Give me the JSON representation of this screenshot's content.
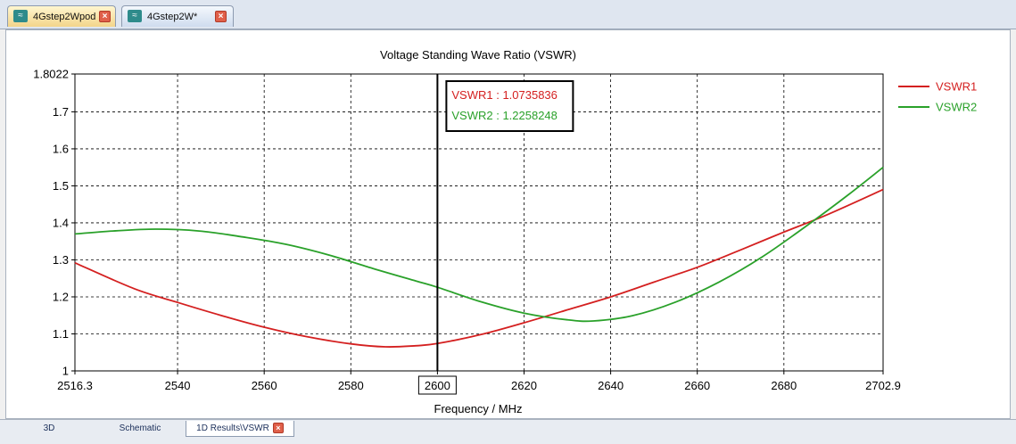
{
  "tabs": [
    {
      "label": "4Gstep2Wpod",
      "active": true
    },
    {
      "label": "4Gstep2W*",
      "active": false
    }
  ],
  "bottom_tabs": [
    {
      "label": "3D"
    },
    {
      "label": "Schematic"
    },
    {
      "label": "1D Results\\VSWR"
    }
  ],
  "icons": {
    "tab": "waveguide-icon",
    "close": "close-icon"
  },
  "colors": {
    "vswr1": "#d42020",
    "vswr2": "#2aa12a"
  },
  "chart_data": {
    "type": "line",
    "title": "Voltage Standing Wave Ratio (VSWR)",
    "xlabel": "Frequency / MHz",
    "ylabel": "",
    "xlim": [
      2516.3,
      2702.9
    ],
    "ylim": [
      1,
      1.8022
    ],
    "x_ticks": [
      {
        "value": 2516.3,
        "label": "2516.3"
      },
      {
        "value": 2540,
        "label": "2540"
      },
      {
        "value": 2560,
        "label": "2560"
      },
      {
        "value": 2580,
        "label": "2580"
      },
      {
        "value": 2600,
        "label": "2600"
      },
      {
        "value": 2620,
        "label": "2620"
      },
      {
        "value": 2640,
        "label": "2640"
      },
      {
        "value": 2660,
        "label": "2660"
      },
      {
        "value": 2680,
        "label": "2680"
      },
      {
        "value": 2702.9,
        "label": "2702.9"
      }
    ],
    "y_ticks": [
      {
        "value": 1,
        "label": "1"
      },
      {
        "value": 1.1,
        "label": "1.1"
      },
      {
        "value": 1.2,
        "label": "1.2"
      },
      {
        "value": 1.3,
        "label": "1.3"
      },
      {
        "value": 1.4,
        "label": "1.4"
      },
      {
        "value": 1.5,
        "label": "1.5"
      },
      {
        "value": 1.6,
        "label": "1.6"
      },
      {
        "value": 1.7,
        "label": "1.7"
      },
      {
        "value": 1.8022,
        "label": "1.8022"
      }
    ],
    "grid": true,
    "legend_position": "right",
    "marker": {
      "x": 2600,
      "label": "2600"
    },
    "readout": [
      {
        "text": "VSWR1 : 1.0735836"
      },
      {
        "text": "VSWR2 : 1.2258248"
      }
    ],
    "series": [
      {
        "name": "VSWR1",
        "x": [
          2516.3,
          2530,
          2540,
          2550,
          2560,
          2570,
          2580,
          2588,
          2595,
          2600,
          2610,
          2620,
          2630,
          2640,
          2650,
          2660,
          2670,
          2680,
          2690,
          2702.9
        ],
        "y": [
          1.292,
          1.222,
          1.185,
          1.15,
          1.118,
          1.092,
          1.073,
          1.065,
          1.068,
          1.074,
          1.098,
          1.13,
          1.165,
          1.2,
          1.24,
          1.28,
          1.327,
          1.375,
          1.422,
          1.49
        ]
      },
      {
        "name": "VSWR2",
        "x": [
          2516.3,
          2525,
          2535,
          2545,
          2555,
          2565,
          2575,
          2585,
          2595,
          2600,
          2610,
          2620,
          2630,
          2636,
          2645,
          2655,
          2665,
          2675,
          2685,
          2695,
          2702.9
        ],
        "y": [
          1.37,
          1.378,
          1.383,
          1.378,
          1.362,
          1.342,
          1.313,
          1.277,
          1.243,
          1.226,
          1.187,
          1.156,
          1.138,
          1.135,
          1.149,
          1.186,
          1.24,
          1.308,
          1.39,
          1.477,
          1.55
        ]
      }
    ]
  }
}
